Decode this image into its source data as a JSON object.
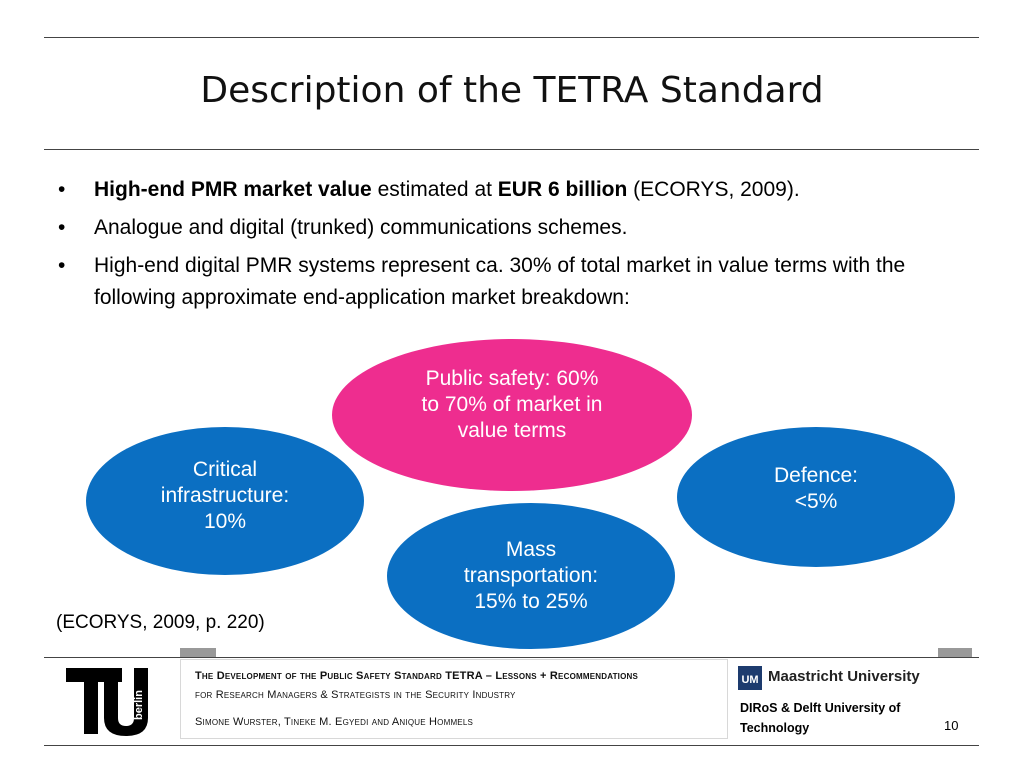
{
  "slide": {
    "title": "Description of the TETRA Standard",
    "bullets": [
      {
        "bold1": "High-end PMR market value",
        "text1": " estimated at ",
        "bold2": "EUR 6 billion",
        "text2": " (ECORYS, 2009)."
      },
      {
        "text": "Analogue and digital (trunked) communications schemes."
      },
      {
        "text": "High-end digital PMR systems represent ca. 30% of total market in value terms with the following approximate end-application market breakdown:"
      }
    ],
    "ellipses": {
      "public_safety": [
        "Public safety: 60%",
        "to 70% of market in",
        "value terms"
      ],
      "critical": [
        "Critical",
        "infrastructure:",
        "10%"
      ],
      "defence": [
        "Defence:",
        "<5%"
      ],
      "mass": [
        "Mass",
        "transportation:",
        "15% to 25%"
      ]
    },
    "colors": {
      "pink": "#ee2d8f",
      "blue": "#0b6fc2"
    },
    "source": "(ECORYS, 2009, p. 220)"
  },
  "footer": {
    "line1": "The Development of the Public Safety Standard TETRA – Lessons + Recommendations",
    "line2": "for Research Managers & Strategists in the Security Industry",
    "line3": "Simone Wurster, Tineke M. Egyedi and Anique Hommels",
    "university": "Maastricht University",
    "mu_badge": "UM",
    "tu_text": "berlin",
    "diros": "DIRoS & Delft University of Technology",
    "page": "10"
  }
}
